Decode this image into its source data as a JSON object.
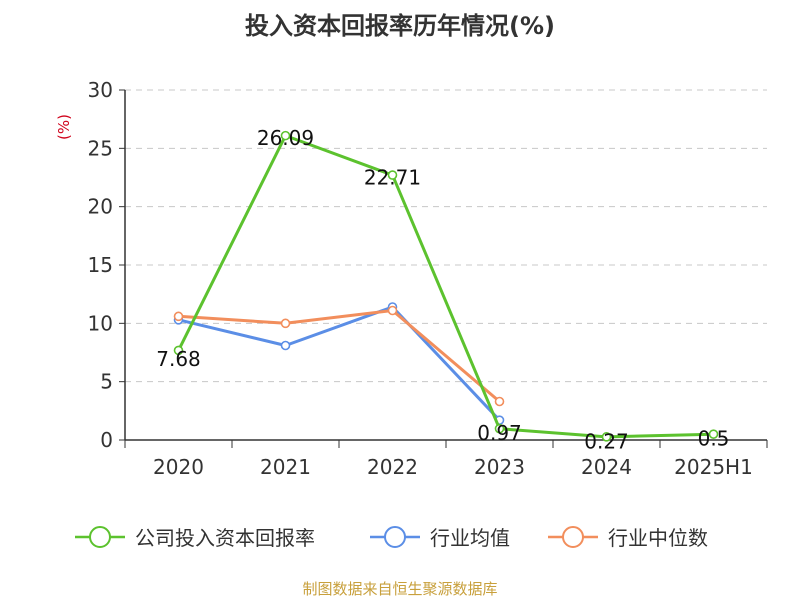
{
  "chart_data": {
    "type": "line",
    "title": "投入资本回报率历年情况(%)",
    "ylabel": "(%)",
    "xlabel": "",
    "categories": [
      "2020",
      "2021",
      "2022",
      "2023",
      "2024",
      "2025H1"
    ],
    "ylim": [
      0,
      30
    ],
    "yticks": [
      "0",
      "5",
      "10",
      "15",
      "20",
      "25",
      "30"
    ],
    "grid": true,
    "legend_position": "bottom",
    "series": [
      {
        "name": "公司投入资本回报率",
        "color": "#5cc22e",
        "values": [
          7.68,
          26.09,
          22.71,
          0.97,
          0.27,
          0.5
        ],
        "labels": [
          "7.68",
          "26.09",
          "22.71",
          "0.97",
          "0.27",
          "0.5"
        ]
      },
      {
        "name": "行业均值",
        "color": "#5b8ee6",
        "values": [
          10.3,
          8.1,
          11.4,
          1.7,
          null,
          null
        ]
      },
      {
        "name": "行业中位数",
        "color": "#f28e5c",
        "values": [
          10.6,
          10.0,
          11.1,
          3.3,
          null,
          null
        ]
      }
    ]
  },
  "source": "制图数据来自恒生聚源数据库"
}
